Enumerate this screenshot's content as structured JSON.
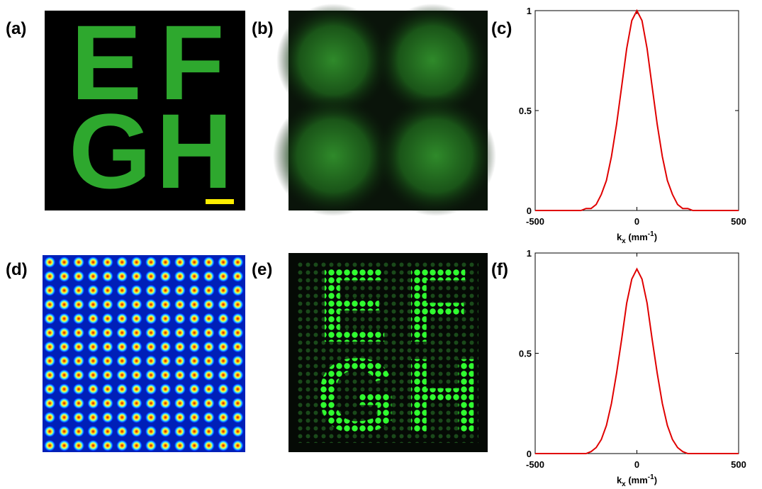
{
  "panel_labels": [
    "(a)",
    "(b)",
    "(c)",
    "(d)",
    "(e)",
    "(f)"
  ],
  "image_a_letters": [
    "E",
    "F",
    "G",
    "H"
  ],
  "image_e_letters": [
    "E",
    "F",
    "G",
    "H"
  ],
  "chart_data": [
    {
      "type": "line",
      "x": [
        -500,
        -475,
        -450,
        -425,
        -400,
        -375,
        -350,
        -325,
        -300,
        -275,
        -250,
        -225,
        -200,
        -175,
        -150,
        -125,
        -100,
        -75,
        -50,
        -25,
        0,
        25,
        50,
        75,
        100,
        125,
        150,
        175,
        200,
        225,
        250,
        275,
        300,
        325,
        350,
        375,
        400,
        425,
        450,
        475,
        500
      ],
      "series": [
        {
          "color": "#e00000",
          "values": [
            0,
            0,
            0,
            0,
            0,
            0,
            0,
            0,
            0,
            0,
            0.01,
            0.01,
            0.03,
            0.08,
            0.15,
            0.27,
            0.43,
            0.62,
            0.81,
            0.95,
            1,
            0.95,
            0.81,
            0.62,
            0.43,
            0.27,
            0.15,
            0.08,
            0.03,
            0.01,
            0.01,
            0,
            0,
            0,
            0,
            0,
            0,
            0,
            0,
            0,
            0
          ]
        }
      ],
      "xlim": [
        -500,
        500
      ],
      "ylim": [
        0,
        1
      ],
      "xticks": [
        -500,
        0,
        500
      ],
      "yticks": [
        0,
        0.5,
        1
      ],
      "xlabel": {
        "base": "k",
        "sub": "x",
        "unit": " (mm",
        "sup": "-1",
        "close": ")"
      }
    },
    {
      "type": "line",
      "x": [
        -500,
        -475,
        -450,
        -425,
        -400,
        -375,
        -350,
        -325,
        -300,
        -275,
        -250,
        -225,
        -200,
        -175,
        -150,
        -125,
        -100,
        -75,
        -50,
        -25,
        0,
        25,
        50,
        75,
        100,
        125,
        150,
        175,
        200,
        225,
        250,
        275,
        300,
        325,
        350,
        375,
        400,
        425,
        450,
        475,
        500
      ],
      "series": [
        {
          "color": "#e00000",
          "values": [
            0,
            0,
            0,
            0,
            0,
            0,
            0,
            0,
            0,
            0,
            0,
            0.01,
            0.03,
            0.07,
            0.14,
            0.25,
            0.4,
            0.57,
            0.75,
            0.87,
            0.92,
            0.87,
            0.75,
            0.57,
            0.4,
            0.25,
            0.14,
            0.07,
            0.03,
            0.01,
            0,
            0,
            0,
            0,
            0,
            0,
            0,
            0,
            0,
            0,
            0
          ]
        }
      ],
      "xlim": [
        -500,
        500
      ],
      "ylim": [
        0,
        1
      ],
      "xticks": [
        -500,
        0,
        500
      ],
      "yticks": [
        0,
        0.5,
        1
      ],
      "xlabel": {
        "base": "k",
        "sub": "x",
        "unit": " (mm",
        "sup": "-1",
        "close": ")"
      }
    }
  ]
}
